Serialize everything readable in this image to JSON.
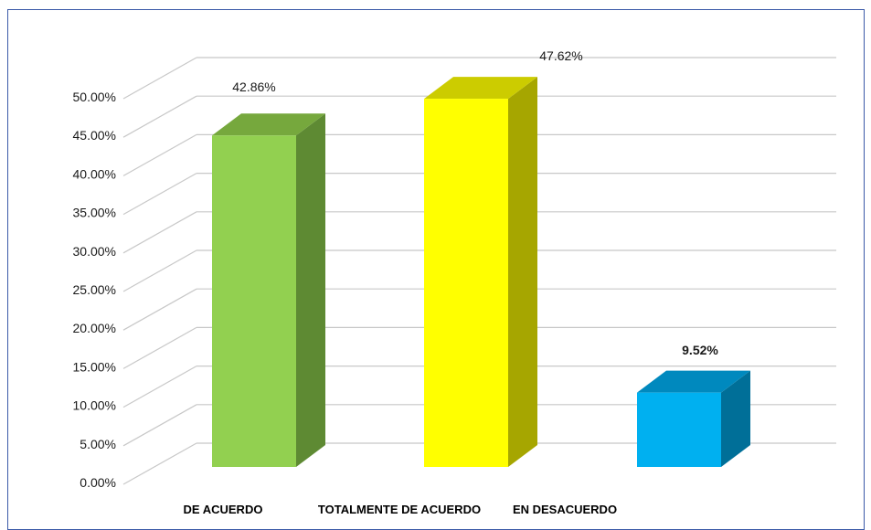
{
  "chart_data": {
    "type": "bar",
    "style": "3d-column",
    "categories": [
      "DE ACUERDO",
      "TOTALMENTE DE ACUERDO",
      "EN DESACUERDO"
    ],
    "values": [
      42.86,
      47.62,
      9.52
    ],
    "data_labels": [
      "42.86%",
      "47.62%",
      "9.52%"
    ],
    "bold_labels": [
      false,
      false,
      true
    ],
    "y_ticks": [
      "0.00%",
      "5.00%",
      "10.00%",
      "15.00%",
      "20.00%",
      "25.00%",
      "30.00%",
      "35.00%",
      "40.00%",
      "45.00%",
      "50.00%"
    ],
    "ylim": [
      0,
      50
    ],
    "grid": true,
    "colors": {
      "front": [
        "#92d050",
        "#ffff00",
        "#00b0f0"
      ],
      "side": [
        "#5e8a33",
        "#a6a600",
        "#006f98"
      ],
      "top": [
        "#76a83d",
        "#cccc00",
        "#0089be"
      ]
    },
    "title": "",
    "xlabel": "",
    "ylabel": ""
  }
}
